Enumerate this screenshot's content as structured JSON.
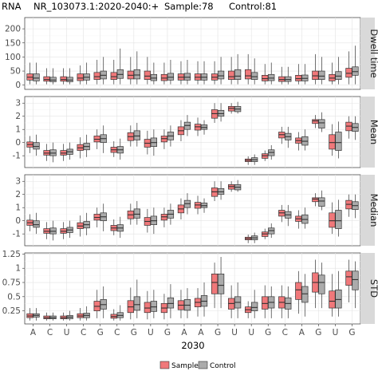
{
  "title": {
    "prefix": "RNA",
    "transcript": "NR_103073.1:2020-2040:+",
    "sample_count": "Sample:78",
    "control_count": "Control:81"
  },
  "xlabel": "2030",
  "legend": {
    "placement": "bottom-center",
    "items": [
      "Sample",
      "Control"
    ]
  },
  "colors": {
    "sample": "#f0787a",
    "control": "#ababab",
    "panel_bg": "#ffffff",
    "grid": "#e3e3e3",
    "strip_bg": "#d9d9d9"
  },
  "chart_data": {
    "type": "boxplot",
    "categories": [
      "A",
      "C",
      "U",
      "C",
      "G",
      "C",
      "G",
      "U",
      "G",
      "A",
      "A",
      "G",
      "U",
      "U",
      "G",
      "C",
      "A",
      "G",
      "U",
      "G"
    ],
    "series_names": [
      "Sample",
      "Control"
    ],
    "panels": [
      {
        "label": "Dwell time",
        "ylim": [
          -15,
          240
        ],
        "yticks": [
          0,
          50,
          100,
          150,
          200
        ],
        "sample": [
          [
            3,
            18,
            28,
            40,
            80
          ],
          [
            3,
            14,
            20,
            30,
            60
          ],
          [
            3,
            14,
            20,
            30,
            60
          ],
          [
            3,
            16,
            25,
            40,
            70
          ],
          [
            3,
            20,
            30,
            45,
            90
          ],
          [
            3,
            20,
            30,
            45,
            90
          ],
          [
            3,
            22,
            35,
            50,
            100
          ],
          [
            3,
            20,
            32,
            50,
            100
          ],
          [
            3,
            16,
            25,
            38,
            80
          ],
          [
            3,
            18,
            28,
            40,
            85
          ],
          [
            3,
            18,
            28,
            40,
            85
          ],
          [
            3,
            18,
            28,
            40,
            85
          ],
          [
            3,
            20,
            30,
            50,
            100
          ],
          [
            3,
            22,
            33,
            55,
            110
          ],
          [
            3,
            15,
            23,
            35,
            75
          ],
          [
            3,
            13,
            20,
            30,
            65
          ],
          [
            3,
            15,
            23,
            35,
            75
          ],
          [
            3,
            20,
            33,
            50,
            110
          ],
          [
            3,
            15,
            25,
            38,
            80
          ],
          [
            3,
            28,
            42,
            60,
            120
          ]
        ],
        "control": [
          [
            3,
            15,
            25,
            40,
            80
          ],
          [
            3,
            12,
            18,
            28,
            60
          ],
          [
            3,
            12,
            18,
            28,
            60
          ],
          [
            3,
            18,
            28,
            40,
            80
          ],
          [
            3,
            22,
            35,
            50,
            100
          ],
          [
            3,
            24,
            38,
            55,
            130
          ],
          [
            3,
            22,
            36,
            55,
            120
          ],
          [
            3,
            16,
            25,
            38,
            80
          ],
          [
            3,
            18,
            28,
            42,
            90
          ],
          [
            3,
            18,
            28,
            42,
            90
          ],
          [
            3,
            18,
            28,
            40,
            85
          ],
          [
            3,
            22,
            33,
            50,
            100
          ],
          [
            3,
            20,
            32,
            55,
            110
          ],
          [
            3,
            20,
            30,
            45,
            95
          ],
          [
            3,
            16,
            25,
            38,
            80
          ],
          [
            3,
            13,
            20,
            30,
            65
          ],
          [
            3,
            15,
            24,
            36,
            75
          ],
          [
            3,
            20,
            32,
            50,
            100
          ],
          [
            3,
            20,
            32,
            48,
            100
          ],
          [
            3,
            35,
            48,
            65,
            140
          ]
        ]
      },
      {
        "label": "Mean",
        "ylim": [
          -1.9,
          3.5
        ],
        "yticks": [
          -1,
          0,
          1,
          2,
          3
        ],
        "sample": [
          [
            -0.8,
            -0.35,
            -0.15,
            0.05,
            0.5
          ],
          [
            -1.4,
            -0.95,
            -0.8,
            -0.6,
            -0.1
          ],
          [
            -1.4,
            -0.95,
            -0.8,
            -0.6,
            -0.1
          ],
          [
            -1.2,
            -0.6,
            -0.4,
            -0.15,
            0.4
          ],
          [
            -0.5,
            0.05,
            0.25,
            0.5,
            1.0
          ],
          [
            -1.1,
            -0.75,
            -0.55,
            -0.35,
            0.1
          ],
          [
            -0.3,
            0.15,
            0.45,
            0.75,
            1.3
          ],
          [
            -0.9,
            -0.35,
            -0.05,
            0.25,
            0.9
          ],
          [
            -0.5,
            0.05,
            0.3,
            0.5,
            1.0
          ],
          [
            0.1,
            0.6,
            0.9,
            1.2,
            1.7
          ],
          [
            0.5,
            0.95,
            1.2,
            1.4,
            1.9
          ],
          [
            1.5,
            1.85,
            2.2,
            2.5,
            3.0
          ],
          [
            2.2,
            2.4,
            2.6,
            2.75,
            3.0
          ],
          [
            -1.7,
            -1.45,
            -1.35,
            -1.25,
            -1.05
          ],
          [
            -1.4,
            -1.2,
            -1.0,
            -0.85,
            -0.6
          ],
          [
            -0.1,
            0.35,
            0.6,
            0.8,
            1.2
          ],
          [
            -0.6,
            -0.05,
            0.15,
            0.35,
            0.8
          ],
          [
            1.1,
            1.45,
            1.65,
            1.75,
            2.1
          ],
          [
            -1.0,
            -0.5,
            0.0,
            0.6,
            1.4
          ],
          [
            0.3,
            0.9,
            1.25,
            1.55,
            2.0
          ]
        ],
        "control": [
          [
            -1.0,
            -0.5,
            -0.3,
            0.0,
            0.6
          ],
          [
            -1.5,
            -1.0,
            -0.8,
            -0.55,
            0.0
          ],
          [
            -1.3,
            -0.9,
            -0.7,
            -0.5,
            0.0
          ],
          [
            -1.1,
            -0.55,
            -0.3,
            -0.05,
            0.6
          ],
          [
            -0.8,
            0.0,
            0.3,
            0.6,
            1.3
          ],
          [
            -1.3,
            -0.8,
            -0.55,
            -0.3,
            0.3
          ],
          [
            -0.3,
            0.2,
            0.5,
            0.9,
            1.5
          ],
          [
            -1.0,
            -0.3,
            0.0,
            0.35,
            1.0
          ],
          [
            -0.3,
            0.2,
            0.5,
            0.8,
            1.3
          ],
          [
            0.5,
            1.0,
            1.3,
            1.55,
            2.1
          ],
          [
            0.6,
            1.0,
            1.15,
            1.35,
            1.7
          ],
          [
            1.6,
            2.0,
            2.2,
            2.45,
            3.0
          ],
          [
            2.2,
            2.35,
            2.55,
            2.75,
            3.1
          ],
          [
            -1.7,
            -1.45,
            -1.3,
            -1.15,
            -0.9
          ],
          [
            -1.3,
            -1.0,
            -0.75,
            -0.55,
            -0.2
          ],
          [
            -0.4,
            0.2,
            0.45,
            0.7,
            1.2
          ],
          [
            -0.6,
            -0.2,
            0.1,
            0.45,
            1.0
          ],
          [
            0.8,
            1.1,
            1.5,
            1.75,
            2.3
          ],
          [
            -1.2,
            -0.6,
            0.0,
            0.8,
            1.6
          ],
          [
            0.2,
            0.85,
            1.15,
            1.45,
            2.0
          ]
        ]
      },
      {
        "label": "Median",
        "ylim": [
          -1.9,
          3.5
        ],
        "yticks": [
          -1,
          0,
          1,
          2,
          3
        ],
        "sample": [
          [
            -0.8,
            -0.35,
            -0.15,
            0.05,
            0.5
          ],
          [
            -1.4,
            -0.95,
            -0.8,
            -0.6,
            -0.1
          ],
          [
            -1.4,
            -0.95,
            -0.8,
            -0.6,
            -0.1
          ],
          [
            -1.2,
            -0.6,
            -0.4,
            -0.15,
            0.4
          ],
          [
            -0.5,
            0.05,
            0.25,
            0.5,
            1.0
          ],
          [
            -1.1,
            -0.75,
            -0.55,
            -0.35,
            0.1
          ],
          [
            -0.3,
            0.15,
            0.45,
            0.75,
            1.3
          ],
          [
            -0.9,
            -0.35,
            -0.05,
            0.25,
            0.9
          ],
          [
            -0.5,
            0.05,
            0.3,
            0.5,
            1.0
          ],
          [
            0.1,
            0.6,
            0.9,
            1.2,
            1.7
          ],
          [
            0.5,
            0.95,
            1.2,
            1.4,
            1.9
          ],
          [
            1.5,
            1.85,
            2.2,
            2.5,
            3.0
          ],
          [
            2.2,
            2.4,
            2.6,
            2.75,
            3.0
          ],
          [
            -1.7,
            -1.45,
            -1.35,
            -1.25,
            -1.05
          ],
          [
            -1.4,
            -1.2,
            -1.0,
            -0.85,
            -0.6
          ],
          [
            -0.1,
            0.35,
            0.6,
            0.8,
            1.2
          ],
          [
            -0.6,
            -0.05,
            0.15,
            0.35,
            0.8
          ],
          [
            1.1,
            1.45,
            1.65,
            1.75,
            2.1
          ],
          [
            -1.0,
            -0.5,
            0.0,
            0.6,
            1.4
          ],
          [
            0.3,
            0.9,
            1.25,
            1.55,
            2.0
          ]
        ],
        "control": [
          [
            -1.0,
            -0.5,
            -0.3,
            0.0,
            0.6
          ],
          [
            -1.5,
            -1.0,
            -0.8,
            -0.55,
            0.0
          ],
          [
            -1.3,
            -0.9,
            -0.7,
            -0.5,
            0.0
          ],
          [
            -1.1,
            -0.55,
            -0.3,
            -0.05,
            0.6
          ],
          [
            -0.8,
            0.0,
            0.3,
            0.6,
            1.3
          ],
          [
            -1.3,
            -0.8,
            -0.55,
            -0.3,
            0.3
          ],
          [
            -0.3,
            0.2,
            0.5,
            0.9,
            1.5
          ],
          [
            -1.0,
            -0.3,
            0.0,
            0.35,
            1.0
          ],
          [
            -0.3,
            0.2,
            0.5,
            0.8,
            1.3
          ],
          [
            0.5,
            1.0,
            1.3,
            1.55,
            2.1
          ],
          [
            0.6,
            1.0,
            1.15,
            1.35,
            1.7
          ],
          [
            1.6,
            2.0,
            2.2,
            2.45,
            3.0
          ],
          [
            2.2,
            2.35,
            2.55,
            2.75,
            3.1
          ],
          [
            -1.7,
            -1.45,
            -1.3,
            -1.15,
            -0.9
          ],
          [
            -1.3,
            -1.0,
            -0.75,
            -0.55,
            -0.2
          ],
          [
            -0.4,
            0.2,
            0.45,
            0.7,
            1.2
          ],
          [
            -0.6,
            -0.2,
            0.1,
            0.45,
            1.0
          ],
          [
            0.8,
            1.1,
            1.5,
            1.75,
            2.3
          ],
          [
            -1.2,
            -0.6,
            0.0,
            0.8,
            1.6
          ],
          [
            0.2,
            0.85,
            1.15,
            1.45,
            2.0
          ]
        ]
      },
      {
        "label": "STD",
        "ylim": [
          0.02,
          1.27
        ],
        "yticks": [
          0.25,
          0.5,
          0.75,
          1.0,
          1.25
        ],
        "sample": [
          [
            0.08,
            0.13,
            0.16,
            0.2,
            0.3
          ],
          [
            0.08,
            0.11,
            0.13,
            0.16,
            0.22
          ],
          [
            0.08,
            0.11,
            0.13,
            0.16,
            0.22
          ],
          [
            0.08,
            0.13,
            0.16,
            0.2,
            0.3
          ],
          [
            0.12,
            0.25,
            0.33,
            0.42,
            0.62
          ],
          [
            0.08,
            0.12,
            0.15,
            0.19,
            0.28
          ],
          [
            0.1,
            0.22,
            0.32,
            0.43,
            0.66
          ],
          [
            0.1,
            0.22,
            0.3,
            0.4,
            0.6
          ],
          [
            0.1,
            0.22,
            0.3,
            0.38,
            0.55
          ],
          [
            0.12,
            0.27,
            0.35,
            0.43,
            0.62
          ],
          [
            0.15,
            0.32,
            0.4,
            0.47,
            0.65
          ],
          [
            0.3,
            0.55,
            0.75,
            0.9,
            1.1
          ],
          [
            0.12,
            0.28,
            0.38,
            0.47,
            0.7
          ],
          [
            0.12,
            0.22,
            0.27,
            0.32,
            0.42
          ],
          [
            0.12,
            0.28,
            0.38,
            0.5,
            0.7
          ],
          [
            0.12,
            0.3,
            0.4,
            0.5,
            0.7
          ],
          [
            0.2,
            0.45,
            0.62,
            0.75,
            0.95
          ],
          [
            0.3,
            0.58,
            0.75,
            0.92,
            1.15
          ],
          [
            0.15,
            0.3,
            0.42,
            0.6,
            0.9
          ],
          [
            0.4,
            0.7,
            0.85,
            0.95,
            1.15
          ]
        ],
        "control": [
          [
            0.08,
            0.14,
            0.17,
            0.2,
            0.3
          ],
          [
            0.08,
            0.11,
            0.13,
            0.16,
            0.22
          ],
          [
            0.08,
            0.11,
            0.14,
            0.17,
            0.25
          ],
          [
            0.08,
            0.13,
            0.17,
            0.21,
            0.33
          ],
          [
            0.12,
            0.28,
            0.36,
            0.45,
            0.68
          ],
          [
            0.08,
            0.13,
            0.17,
            0.22,
            0.35
          ],
          [
            0.12,
            0.26,
            0.36,
            0.5,
            0.8
          ],
          [
            0.12,
            0.24,
            0.32,
            0.42,
            0.62
          ],
          [
            0.12,
            0.3,
            0.38,
            0.48,
            0.72
          ],
          [
            0.12,
            0.26,
            0.35,
            0.45,
            0.65
          ],
          [
            0.15,
            0.33,
            0.42,
            0.52,
            0.75
          ],
          [
            0.3,
            0.55,
            0.7,
            0.9,
            1.2
          ],
          [
            0.12,
            0.3,
            0.4,
            0.5,
            0.75
          ],
          [
            0.12,
            0.25,
            0.31,
            0.4,
            0.62
          ],
          [
            0.12,
            0.3,
            0.4,
            0.5,
            0.68
          ],
          [
            0.12,
            0.28,
            0.38,
            0.48,
            0.68
          ],
          [
            0.15,
            0.4,
            0.55,
            0.68,
            0.9
          ],
          [
            0.3,
            0.55,
            0.75,
            0.88,
            1.1
          ],
          [
            0.15,
            0.3,
            0.45,
            0.62,
            0.95
          ],
          [
            0.3,
            0.62,
            0.8,
            0.95,
            1.12
          ]
        ]
      }
    ],
    "grid": true
  }
}
